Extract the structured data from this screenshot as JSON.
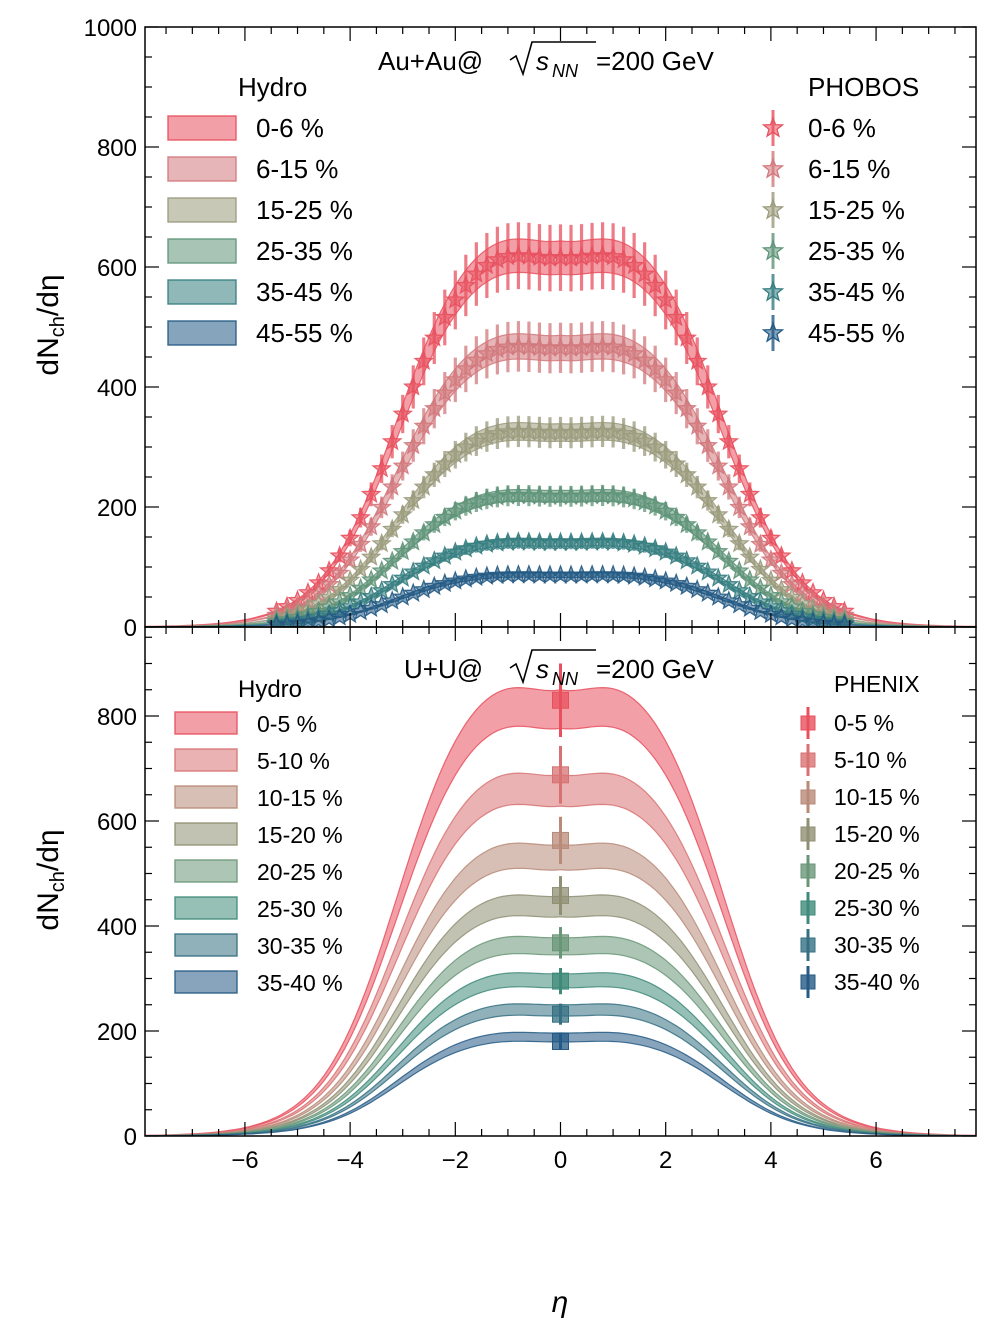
{
  "figure": {
    "xlabel": "η",
    "ylabel": "dN",
    "ylabel_sub": "ch",
    "ylabel_tail": "/dη",
    "x_ticks": [
      "−6",
      "−4",
      "−2",
      "0",
      "2",
      "4",
      "6"
    ]
  },
  "chart_data": [
    {
      "type": "line",
      "panel": "top",
      "title_prefix": "Au+Au@",
      "title_var": "s",
      "title_sub": "NN",
      "title_suffix": "=200 GeV",
      "xlim": [
        -7.9,
        7.9
      ],
      "ylim": [
        0,
        1000
      ],
      "y_ticks": [
        "0",
        "200",
        "400",
        "600",
        "800",
        "1000"
      ],
      "y_tick_values": [
        0,
        200,
        400,
        600,
        800,
        1000
      ],
      "model_label": "Hydro",
      "data_label": "PHOBOS",
      "data_marker": "star",
      "data_eta_max": 5.4,
      "data_eta_step": 0.2,
      "data_rel_err": [
        0.09,
        0.09,
        0.08,
        0.08,
        0.08,
        0.08
      ],
      "series": [
        {
          "name": "0-6 %",
          "data_name": "0-6  %",
          "peak": 655,
          "color": "#e8505e"
        },
        {
          "name": "6-15 %",
          "data_name": "6-15 %",
          "peak": 495,
          "color": "#d2787c"
        },
        {
          "name": "15-25 %",
          "data_name": "15-25 %",
          "peak": 345,
          "color": "#9a9a7c"
        },
        {
          "name": "25-35 %",
          "data_name": "25-35 %",
          "peak": 232,
          "color": "#5f9478"
        },
        {
          "name": "35-45 %",
          "data_name": "35-45 %",
          "peak": 150,
          "color": "#357d80"
        },
        {
          "name": "45-55 %",
          "data_name": "45-55 %",
          "peak": 92,
          "color": "#235a84"
        }
      ]
    },
    {
      "type": "line",
      "panel": "bottom",
      "title_prefix": "U+U@",
      "title_var": "s",
      "title_sub": "NN",
      "title_suffix": "=200 GeV",
      "xlim": [
        -7.9,
        7.9
      ],
      "ylim": [
        0,
        970
      ],
      "y_ticks": [
        "0",
        "200",
        "400",
        "600",
        "800"
      ],
      "y_tick_values": [
        0,
        200,
        400,
        600,
        800
      ],
      "model_label": "Hydro",
      "data_label": "PHENIX",
      "data_marker": "square",
      "series": [
        {
          "name": "0-5 %",
          "peak": 865,
          "eta0": 830,
          "err": 70,
          "color": "#e8505e"
        },
        {
          "name": "5-10 %",
          "peak": 700,
          "eta0": 688,
          "err": 55,
          "color": "#d87272"
        },
        {
          "name": "10-15 %",
          "peak": 565,
          "eta0": 563,
          "err": 45,
          "color": "#b88a78"
        },
        {
          "name": "15-20 %",
          "peak": 465,
          "eta0": 458,
          "err": 37,
          "color": "#8f8f74"
        },
        {
          "name": "20-25 %",
          "peak": 385,
          "eta0": 368,
          "err": 30,
          "color": "#6a9678"
        },
        {
          "name": "25-30 %",
          "peak": 315,
          "eta0": 295,
          "err": 25,
          "color": "#3f8a7a"
        },
        {
          "name": "30-35 %",
          "peak": 255,
          "eta0": 232,
          "err": 20,
          "color": "#347082"
        },
        {
          "name": "35-40 %",
          "peak": 200,
          "eta0": 180,
          "err": 16,
          "color": "#245a85"
        }
      ]
    }
  ]
}
